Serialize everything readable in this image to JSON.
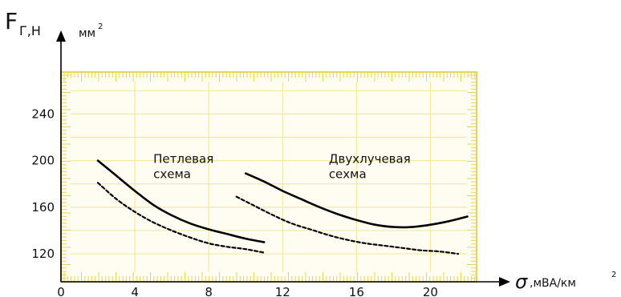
{
  "chart_data": {
    "type": "line",
    "y_axis_label": "F",
    "y_axis_label_subscript": "Г,Н",
    "y_axis_unit": "мм",
    "y_axis_unit_power": "2",
    "x_axis_symbol": "σ",
    "x_axis_unit": ",мВА/км",
    "x_axis_unit_power": "2",
    "xlim": [
      0,
      22.5
    ],
    "ylim": [
      96,
      276
    ],
    "x_ticks": [
      0,
      4,
      8,
      12,
      16,
      20
    ],
    "y_ticks": [
      120,
      160,
      200,
      240
    ],
    "grid": true,
    "grid_color": "#f3e9a0",
    "ruler_color": "#e9d45a",
    "annotations": [
      {
        "lines": [
          "Петлевая",
          "схема"
        ],
        "x": 5.0,
        "y": 198
      },
      {
        "lines": [
          "Двухлучевая",
          "сехма"
        ],
        "x": 14.5,
        "y": 198
      }
    ],
    "series": [
      {
        "group": "left",
        "style": "solid",
        "x": [
          2,
          3,
          4,
          5,
          6,
          7,
          8,
          9,
          10,
          11
        ],
        "y": [
          200,
          187,
          174,
          162,
          153,
          146,
          141,
          137,
          133,
          130
        ]
      },
      {
        "group": "left",
        "style": "dashed",
        "x": [
          2,
          3,
          4,
          5,
          6,
          7,
          8,
          9,
          10,
          11
        ],
        "y": [
          181,
          167,
          156,
          147,
          140,
          134,
          129,
          126,
          124,
          121
        ]
      },
      {
        "group": "right",
        "style": "solid",
        "x": [
          10,
          11,
          12,
          13,
          14,
          15,
          16,
          17,
          18,
          19,
          20,
          21,
          22
        ],
        "y": [
          189,
          182,
          174,
          167,
          160,
          154,
          149,
          145,
          143,
          143,
          145,
          148,
          152
        ]
      },
      {
        "group": "right",
        "style": "dashed",
        "x": [
          9.5,
          10.5,
          11.5,
          12.5,
          13.5,
          14.5,
          15.5,
          16.5,
          17.5,
          18.5,
          19.5,
          20.5,
          21.5
        ],
        "y": [
          169,
          161,
          153,
          146,
          141,
          136,
          132,
          129,
          127,
          125,
          123,
          122,
          120
        ]
      }
    ]
  }
}
